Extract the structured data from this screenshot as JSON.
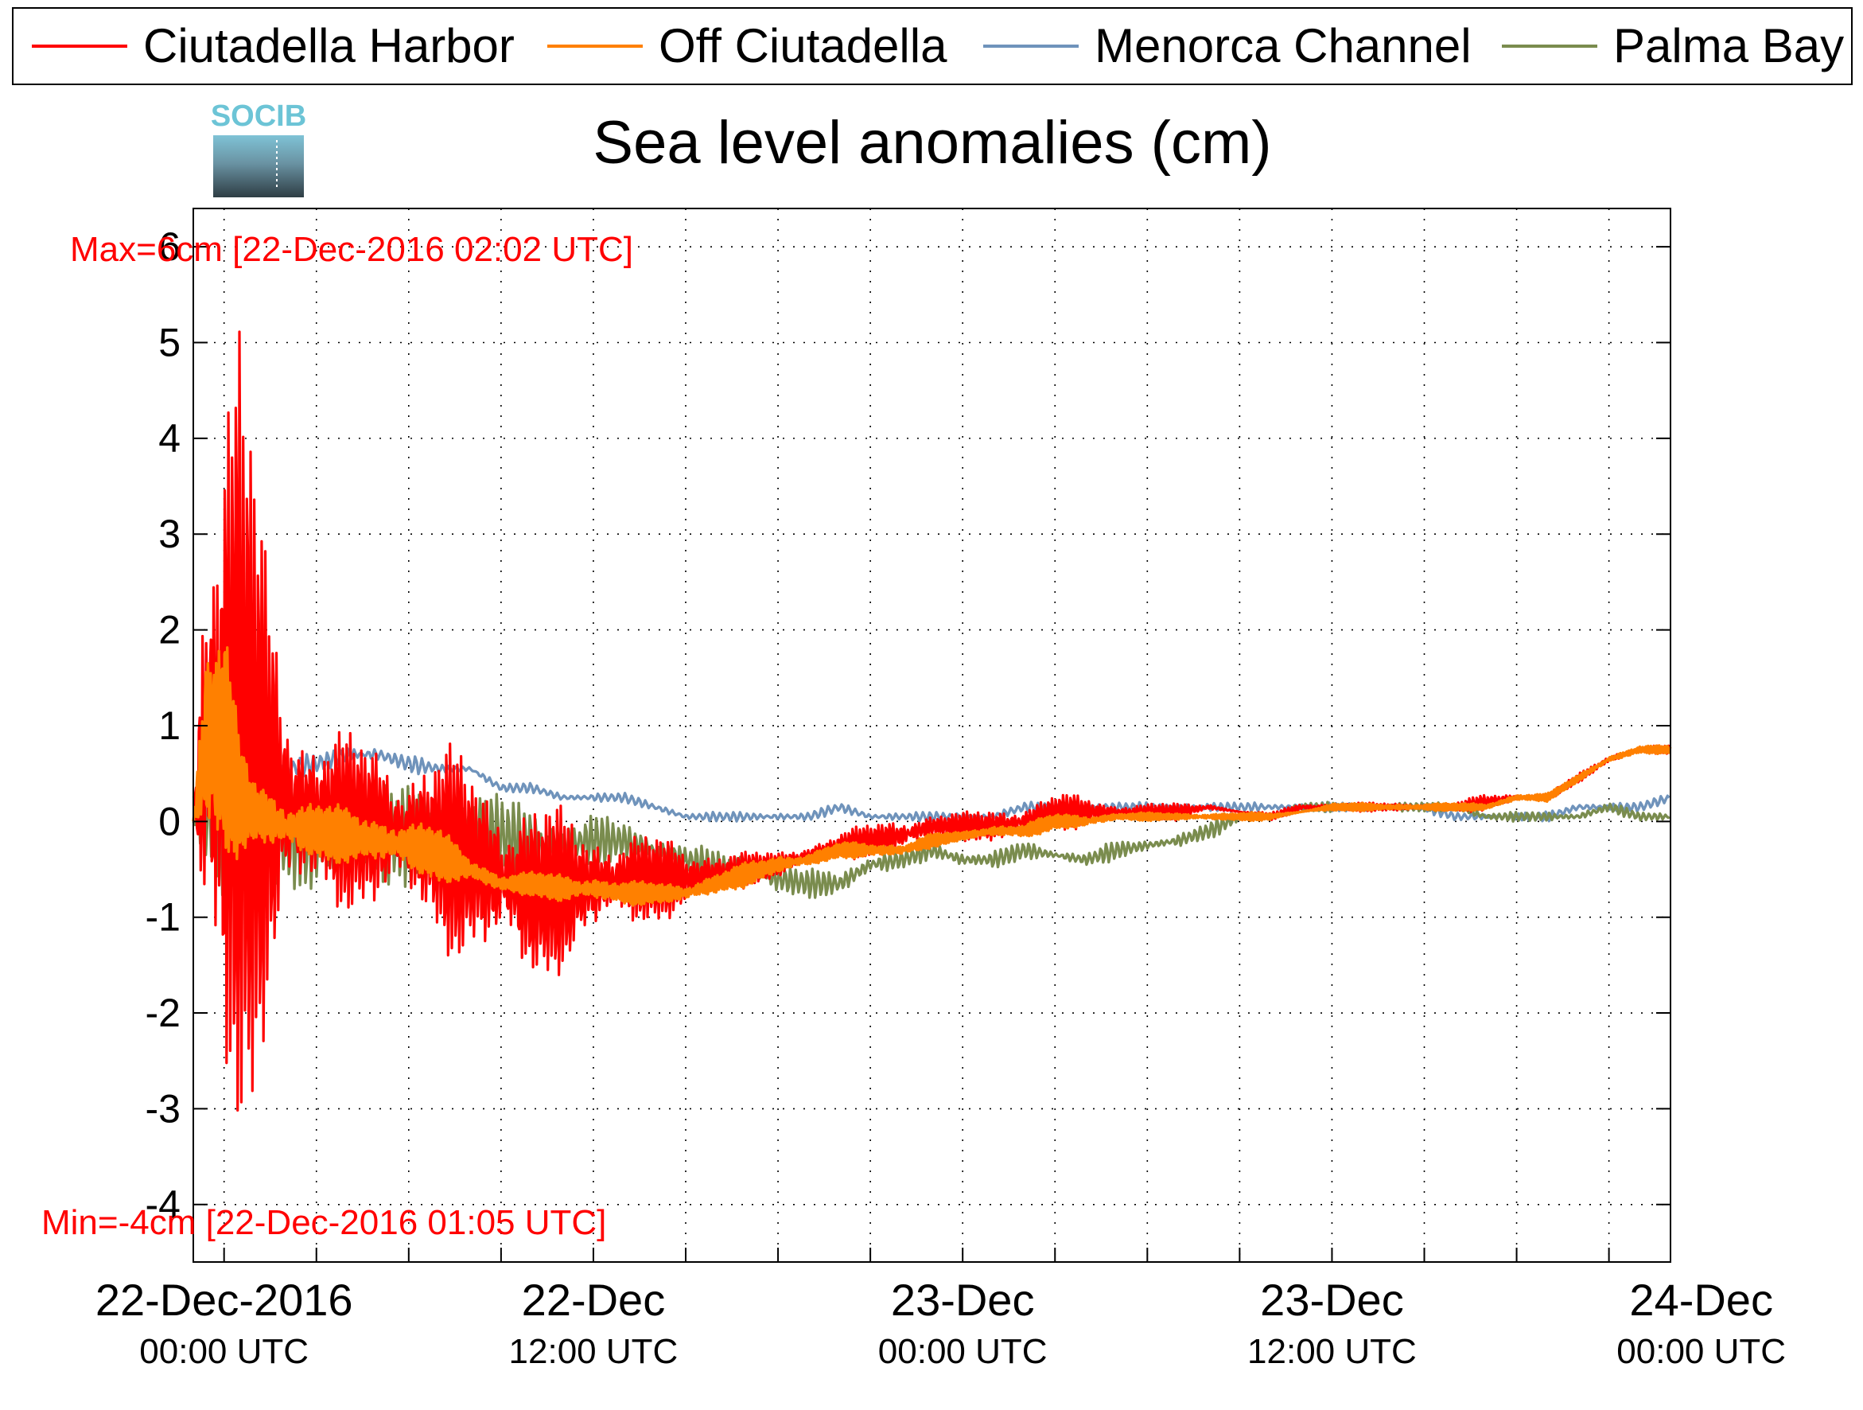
{
  "chart_data": {
    "type": "line",
    "title": "Sea level anomalies (cm)",
    "xlabel": "",
    "ylabel": "",
    "logo_text": "SOCIB",
    "ylim": [
      -4.6,
      6.4
    ],
    "xlim_hours": [
      -1,
      47
    ],
    "y_ticks": [
      -4,
      -3,
      -2,
      -1,
      0,
      1,
      2,
      3,
      4,
      5,
      6
    ],
    "y_tick_labels": [
      "-4",
      "-3",
      "-2",
      "-1",
      "0",
      "1",
      "2",
      "3",
      "4",
      "5",
      "6"
    ],
    "x_tick_labels": [
      {
        "hour": 0,
        "line1": "22-Dec-2016",
        "line2": "00:00 UTC"
      },
      {
        "hour": 12,
        "line1": "22-Dec",
        "line2": "12:00 UTC"
      },
      {
        "hour": 24,
        "line1": "23-Dec",
        "line2": "00:00 UTC"
      },
      {
        "hour": 36,
        "line1": "23-Dec",
        "line2": "12:00 UTC"
      },
      {
        "hour": 48,
        "line1": "24-Dec",
        "line2": "00:00 UTC"
      }
    ],
    "grid": true,
    "legend_position": "top",
    "annotations": {
      "max_text": "Max=6cm [22-Dec-2016 02:02 UTC]",
      "min_text": "Min=-4cm [22-Dec-2016 01:05 UTC]",
      "color": "#ff0000"
    },
    "series": [
      {
        "name": "Ciutadella Harbor",
        "color": "#ff0000",
        "envelope": [
          [
            -1,
            0.0,
            0.0
          ],
          [
            -0.6,
            -3.0,
            4.6
          ],
          [
            0.0,
            -3.8,
            5.3
          ],
          [
            0.5,
            -3.7,
            5.6
          ],
          [
            1.0,
            -3.6,
            4.4
          ],
          [
            1.5,
            -2.1,
            2.8
          ],
          [
            2.0,
            -1.6,
            2.0
          ],
          [
            2.5,
            -1.3,
            1.5
          ],
          [
            3.0,
            -1.1,
            1.2
          ],
          [
            4.0,
            -1.0,
            1.0
          ],
          [
            5.0,
            -1.1,
            1.0
          ],
          [
            6.0,
            -1.2,
            0.9
          ],
          [
            7.0,
            -1.4,
            0.9
          ],
          [
            8.0,
            -1.6,
            0.8
          ],
          [
            9.0,
            -1.8,
            0.6
          ],
          [
            10.0,
            -1.9,
            0.4
          ],
          [
            11.0,
            -1.6,
            0.2
          ],
          [
            12.0,
            -1.4,
            0.1
          ],
          [
            13.0,
            -1.2,
            0.0
          ],
          [
            14.0,
            -1.1,
            -0.1
          ],
          [
            15.0,
            -1.0,
            -0.2
          ],
          [
            16.0,
            -0.9,
            -0.2
          ],
          [
            17.0,
            -0.7,
            -0.3
          ],
          [
            18.0,
            -0.6,
            -0.3
          ],
          [
            19.0,
            -0.5,
            -0.2
          ],
          [
            20.0,
            -0.4,
            -0.1
          ],
          [
            21.0,
            -0.4,
            0.0
          ],
          [
            22.0,
            -0.4,
            0.1
          ],
          [
            23.0,
            -0.2,
            0.1
          ],
          [
            24.0,
            -0.2,
            0.1
          ],
          [
            25.0,
            -0.3,
            0.2
          ],
          [
            26.0,
            -0.2,
            0.2
          ],
          [
            27.0,
            -0.1,
            0.3
          ],
          [
            28.0,
            -0.1,
            0.3
          ],
          [
            29.0,
            0.0,
            0.2
          ],
          [
            30.0,
            0.0,
            0.2
          ],
          [
            31.0,
            0.0,
            0.2
          ],
          [
            32.0,
            0.1,
            0.2
          ],
          [
            33.0,
            0.1,
            0.1
          ],
          [
            34.0,
            0.0,
            0.1
          ],
          [
            35.0,
            0.1,
            0.2
          ],
          [
            36.0,
            0.1,
            0.2
          ],
          [
            37.0,
            0.1,
            0.2
          ],
          [
            38.0,
            0.1,
            0.2
          ],
          [
            39.0,
            0.1,
            0.2
          ],
          [
            40.0,
            0.1,
            0.2
          ],
          [
            41.0,
            0.1,
            0.3
          ],
          [
            42.0,
            0.2,
            0.3
          ],
          [
            43.0,
            0.2,
            0.3
          ],
          [
            44.0,
            0.4,
            0.5
          ],
          [
            45.0,
            0.6,
            0.7
          ],
          [
            46.0,
            0.7,
            0.8
          ],
          [
            47.0,
            0.7,
            0.8
          ]
        ]
      },
      {
        "name": "Off Ciutadella",
        "color": "#ff8000",
        "envelope": [
          [
            -1,
            0.0,
            0.0
          ],
          [
            -0.6,
            -0.6,
            2.3
          ],
          [
            0.0,
            -0.6,
            2.3
          ],
          [
            0.5,
            -0.5,
            1.0
          ],
          [
            1.0,
            -0.4,
            0.6
          ],
          [
            2.0,
            -0.5,
            0.4
          ],
          [
            3.0,
            -0.5,
            0.3
          ],
          [
            4.0,
            -0.5,
            0.2
          ],
          [
            5.0,
            -0.6,
            0.2
          ],
          [
            6.0,
            -0.6,
            0.1
          ],
          [
            7.0,
            -0.7,
            0.0
          ],
          [
            8.0,
            -0.7,
            -0.3
          ],
          [
            9.0,
            -0.8,
            -0.5
          ],
          [
            10.0,
            -0.8,
            -0.5
          ],
          [
            11.0,
            -0.9,
            -0.5
          ],
          [
            12.0,
            -0.9,
            -0.5
          ],
          [
            13.0,
            -0.9,
            -0.6
          ],
          [
            14.0,
            -0.9,
            -0.6
          ],
          [
            15.0,
            -0.9,
            -0.6
          ],
          [
            16.0,
            -0.8,
            -0.5
          ],
          [
            17.0,
            -0.7,
            -0.4
          ],
          [
            18.0,
            -0.6,
            -0.3
          ],
          [
            19.0,
            -0.5,
            -0.3
          ],
          [
            20.0,
            -0.4,
            -0.2
          ],
          [
            21.0,
            -0.4,
            -0.2
          ],
          [
            22.0,
            -0.4,
            -0.2
          ],
          [
            23.0,
            -0.3,
            -0.1
          ],
          [
            24.0,
            -0.2,
            -0.1
          ],
          [
            25.0,
            -0.2,
            0.0
          ],
          [
            26.0,
            -0.2,
            0.0
          ],
          [
            27.0,
            -0.1,
            0.1
          ],
          [
            28.0,
            -0.1,
            0.1
          ],
          [
            29.0,
            0.0,
            0.1
          ],
          [
            30.0,
            0.0,
            0.1
          ],
          [
            31.0,
            0.0,
            0.1
          ],
          [
            32.0,
            0.0,
            0.1
          ],
          [
            33.0,
            0.0,
            0.1
          ],
          [
            34.0,
            0.0,
            0.1
          ],
          [
            35.0,
            0.1,
            0.1
          ],
          [
            36.0,
            0.1,
            0.2
          ],
          [
            37.0,
            0.1,
            0.2
          ],
          [
            38.0,
            0.1,
            0.2
          ],
          [
            39.0,
            0.1,
            0.2
          ],
          [
            40.0,
            0.1,
            0.2
          ],
          [
            41.0,
            0.1,
            0.2
          ],
          [
            42.0,
            0.2,
            0.3
          ],
          [
            43.0,
            0.2,
            0.3
          ],
          [
            44.0,
            0.4,
            0.5
          ],
          [
            45.0,
            0.6,
            0.7
          ],
          [
            46.0,
            0.7,
            0.8
          ],
          [
            47.0,
            0.7,
            0.8
          ]
        ]
      },
      {
        "name": "Menorca Channel",
        "color": "#6f93bb",
        "envelope": [
          [
            -1,
            0.2,
            0.3
          ],
          [
            -0.6,
            0.4,
            0.7
          ],
          [
            0.0,
            0.5,
            1.4
          ],
          [
            0.5,
            0.3,
            1.0
          ],
          [
            1.0,
            0.4,
            0.9
          ],
          [
            1.5,
            0.4,
            0.7
          ],
          [
            2.0,
            0.4,
            0.7
          ],
          [
            3.0,
            0.5,
            0.7
          ],
          [
            4.0,
            0.6,
            0.8
          ],
          [
            5.0,
            0.6,
            0.8
          ],
          [
            6.0,
            0.5,
            0.7
          ],
          [
            7.0,
            0.5,
            0.6
          ],
          [
            8.0,
            0.5,
            0.6
          ],
          [
            9.0,
            0.3,
            0.4
          ],
          [
            10.0,
            0.3,
            0.4
          ],
          [
            11.0,
            0.2,
            0.3
          ],
          [
            12.0,
            0.2,
            0.3
          ],
          [
            13.0,
            0.2,
            0.3
          ],
          [
            14.0,
            0.1,
            0.2
          ],
          [
            15.0,
            0.0,
            0.1
          ],
          [
            16.0,
            0.0,
            0.1
          ],
          [
            17.0,
            0.0,
            0.1
          ],
          [
            18.0,
            0.0,
            0.1
          ],
          [
            19.0,
            0.0,
            0.1
          ],
          [
            20.0,
            0.1,
            0.2
          ],
          [
            21.0,
            0.0,
            0.1
          ],
          [
            22.0,
            0.0,
            0.1
          ],
          [
            23.0,
            0.0,
            0.1
          ],
          [
            24.0,
            0.0,
            0.1
          ],
          [
            25.0,
            0.0,
            0.1
          ],
          [
            26.0,
            0.1,
            0.2
          ],
          [
            27.0,
            0.1,
            0.2
          ],
          [
            28.0,
            0.1,
            0.2
          ],
          [
            29.0,
            0.1,
            0.2
          ],
          [
            30.0,
            0.1,
            0.2
          ],
          [
            31.0,
            0.1,
            0.2
          ],
          [
            32.0,
            0.1,
            0.2
          ],
          [
            33.0,
            0.1,
            0.2
          ],
          [
            34.0,
            0.1,
            0.2
          ],
          [
            35.0,
            0.1,
            0.2
          ],
          [
            36.0,
            0.1,
            0.2
          ],
          [
            37.0,
            0.1,
            0.2
          ],
          [
            38.0,
            0.1,
            0.2
          ],
          [
            39.0,
            0.1,
            0.2
          ],
          [
            40.0,
            0.0,
            0.1
          ],
          [
            41.0,
            0.0,
            0.1
          ],
          [
            42.0,
            0.0,
            0.1
          ],
          [
            43.0,
            0.0,
            0.1
          ],
          [
            44.0,
            0.1,
            0.2
          ],
          [
            45.0,
            0.1,
            0.2
          ],
          [
            46.0,
            0.1,
            0.2
          ],
          [
            47.0,
            0.2,
            0.3
          ]
        ]
      },
      {
        "name": "Palma Bay",
        "color": "#7a8c4e",
        "envelope": [
          [
            -1,
            0.0,
            0.0
          ],
          [
            -0.6,
            -0.4,
            0.5
          ],
          [
            0.0,
            -1.1,
            0.9
          ],
          [
            0.5,
            -0.9,
            1.1
          ],
          [
            1.0,
            -1.1,
            0.8
          ],
          [
            1.5,
            -0.9,
            0.5
          ],
          [
            2.0,
            -0.8,
            0.5
          ],
          [
            3.0,
            -0.7,
            0.4
          ],
          [
            4.0,
            -0.7,
            0.3
          ],
          [
            5.0,
            -0.8,
            0.5
          ],
          [
            6.0,
            -0.7,
            0.4
          ],
          [
            7.0,
            -0.5,
            0.3
          ],
          [
            8.0,
            -0.4,
            0.4
          ],
          [
            9.0,
            -0.6,
            0.3
          ],
          [
            10.0,
            -0.7,
            0.2
          ],
          [
            11.0,
            -0.6,
            0.1
          ],
          [
            12.0,
            -0.5,
            0.1
          ],
          [
            13.0,
            -0.4,
            0.0
          ],
          [
            14.0,
            -0.5,
            -0.1
          ],
          [
            15.0,
            -0.6,
            -0.2
          ],
          [
            16.0,
            -0.7,
            -0.3
          ],
          [
            17.0,
            -0.7,
            -0.3
          ],
          [
            18.0,
            -0.8,
            -0.4
          ],
          [
            19.0,
            -0.8,
            -0.5
          ],
          [
            20.0,
            -0.8,
            -0.5
          ],
          [
            21.0,
            -0.6,
            -0.3
          ],
          [
            22.0,
            -0.5,
            -0.3
          ],
          [
            23.0,
            -0.4,
            -0.2
          ],
          [
            24.0,
            -0.5,
            -0.3
          ],
          [
            25.0,
            -0.5,
            -0.3
          ],
          [
            26.0,
            -0.4,
            -0.2
          ],
          [
            27.0,
            -0.4,
            -0.3
          ],
          [
            28.0,
            -0.5,
            -0.3
          ],
          [
            29.0,
            -0.4,
            -0.2
          ],
          [
            30.0,
            -0.3,
            -0.2
          ],
          [
            31.0,
            -0.3,
            -0.1
          ],
          [
            32.0,
            -0.2,
            0.0
          ],
          [
            33.0,
            0.0,
            0.1
          ],
          [
            34.0,
            0.0,
            0.1
          ],
          [
            35.0,
            0.1,
            0.2
          ],
          [
            36.0,
            0.1,
            0.2
          ],
          [
            37.0,
            0.1,
            0.2
          ],
          [
            38.0,
            0.1,
            0.2
          ],
          [
            39.0,
            0.1,
            0.2
          ],
          [
            40.0,
            0.1,
            0.2
          ],
          [
            41.0,
            0.0,
            0.1
          ],
          [
            42.0,
            0.0,
            0.1
          ],
          [
            43.0,
            0.0,
            0.1
          ],
          [
            44.0,
            0.0,
            0.1
          ],
          [
            45.0,
            0.1,
            0.2
          ],
          [
            46.0,
            0.0,
            0.1
          ],
          [
            47.0,
            0.0,
            0.1
          ]
        ]
      }
    ]
  }
}
